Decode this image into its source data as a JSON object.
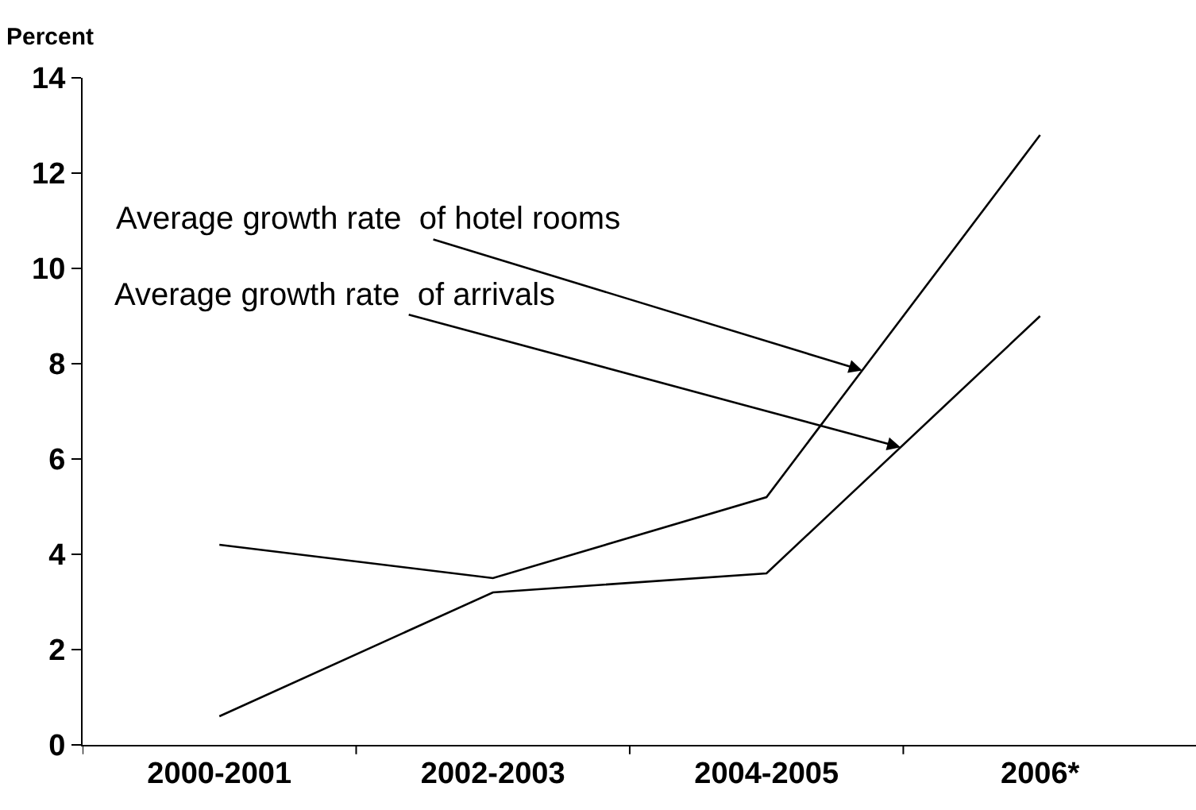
{
  "chart_data": {
    "type": "line",
    "ylabel": "Percent",
    "categories": [
      "2000-2001",
      "2002-2003",
      "2004-2005",
      "2006*"
    ],
    "series": [
      {
        "color": "#000000",
        "values": [
          4.2,
          3.5,
          5.2,
          12.8
        ]
      },
      {
        "color": "#000000",
        "values": [
          0.6,
          3.2,
          3.6,
          9.0
        ]
      }
    ],
    "annotations": [
      "Average growth rate  of hotel rooms",
      "Average growth rate  of arrivals"
    ],
    "ylim": [
      0,
      14
    ],
    "yticks": [
      0,
      2,
      4,
      6,
      8,
      10,
      12,
      14
    ],
    "marker": "none",
    "line_style": "solid"
  }
}
